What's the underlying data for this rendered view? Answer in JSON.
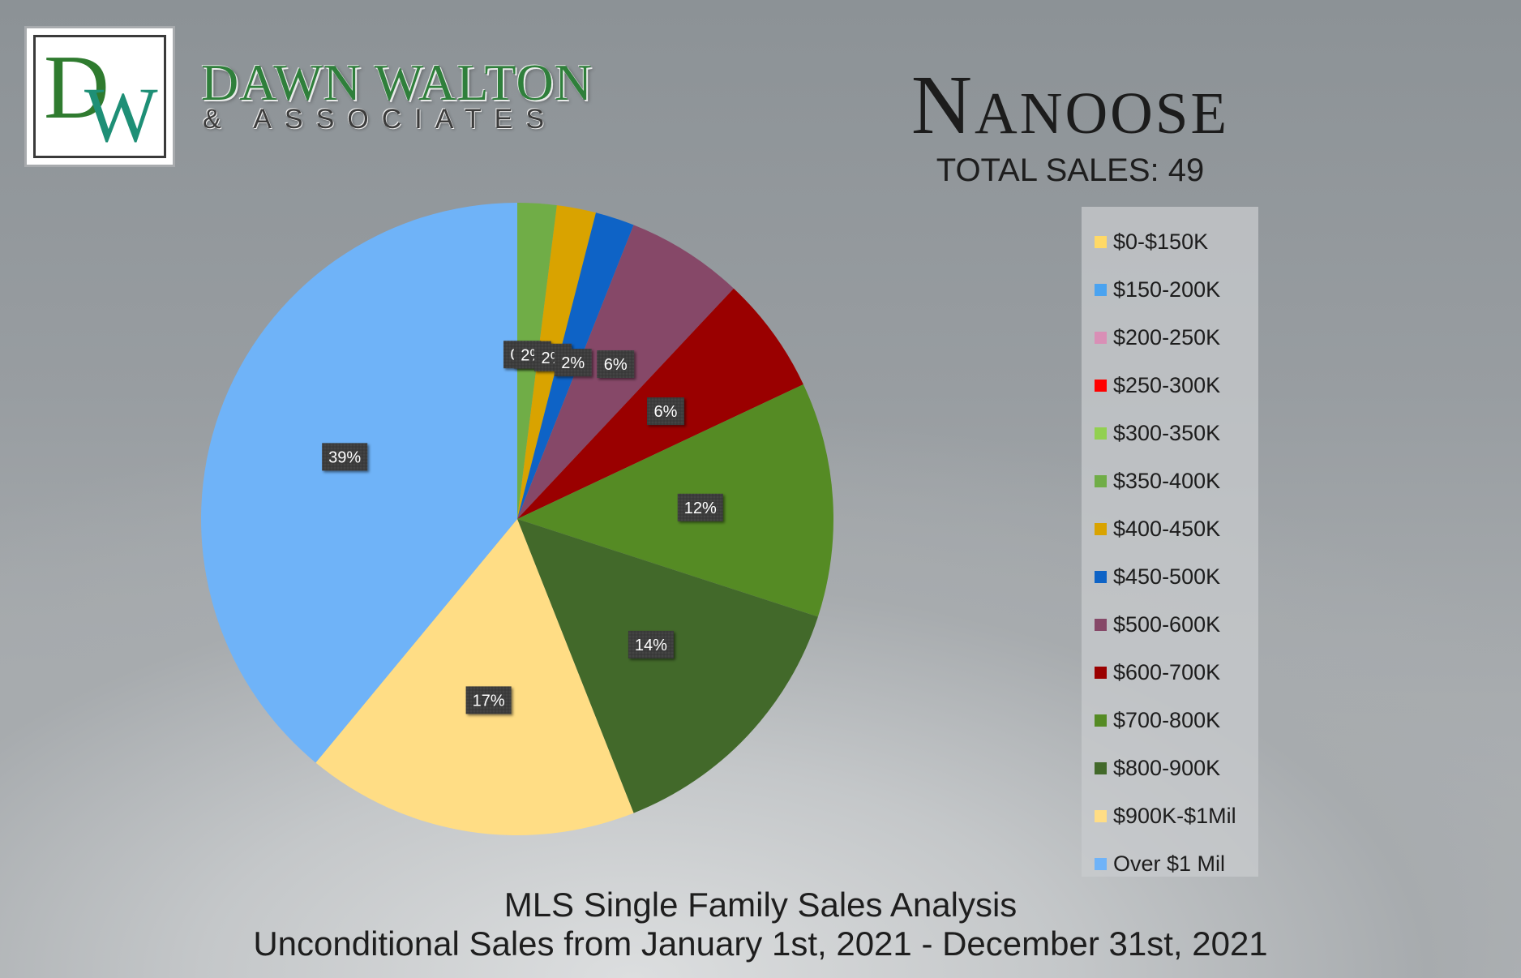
{
  "brand": {
    "logo_letter_1": "D",
    "logo_letter_2": "W",
    "name": "DAWN WALTON",
    "sub": "& ASSOCIATES"
  },
  "chart_data": {
    "type": "pie",
    "title": "Nanoose",
    "subtitle": "TOTAL SALES: 49",
    "footer_lines": [
      "MLS Single Family Sales Analysis",
      "Unconditional Sales from January 1st, 2021 - December 31st, 2021"
    ],
    "legend_position": "right",
    "slices": [
      {
        "label": "$0-$150K",
        "value": 0,
        "data_label": "0%",
        "color": "#ffd966"
      },
      {
        "label": "$150-200K",
        "value": 0,
        "data_label": "0%",
        "color": "#4aa3f0"
      },
      {
        "label": "$200-250K",
        "value": 0,
        "data_label": "0%",
        "color": "#d98fb6"
      },
      {
        "label": "$250-300K",
        "value": 0,
        "data_label": "0%",
        "color": "#ff0000"
      },
      {
        "label": "$300-350K",
        "value": 0,
        "data_label": "0%",
        "color": "#92d050"
      },
      {
        "label": "$350-400K",
        "value": 2,
        "data_label": "2%",
        "color": "#70ad47"
      },
      {
        "label": "$400-450K",
        "value": 2,
        "data_label": "2%",
        "color": "#d9a300"
      },
      {
        "label": "$450-500K",
        "value": 2,
        "data_label": "2%",
        "color": "#0e63c6"
      },
      {
        "label": "$500-600K",
        "value": 6,
        "data_label": "6%",
        "color": "#864868"
      },
      {
        "label": "$600-700K",
        "value": 6,
        "data_label": "6%",
        "color": "#9a0000"
      },
      {
        "label": "$700-800K",
        "value": 12,
        "data_label": "12%",
        "color": "#558b24"
      },
      {
        "label": "$800-900K",
        "value": 14,
        "data_label": "14%",
        "color": "#42692a"
      },
      {
        "label": "$900K-$1Mil",
        "value": 17,
        "data_label": "17%",
        "color": "#ffdd85"
      },
      {
        "label": "Over $1 Mil",
        "value": 39,
        "data_label": "39%",
        "color": "#6fb3f8"
      }
    ]
  }
}
